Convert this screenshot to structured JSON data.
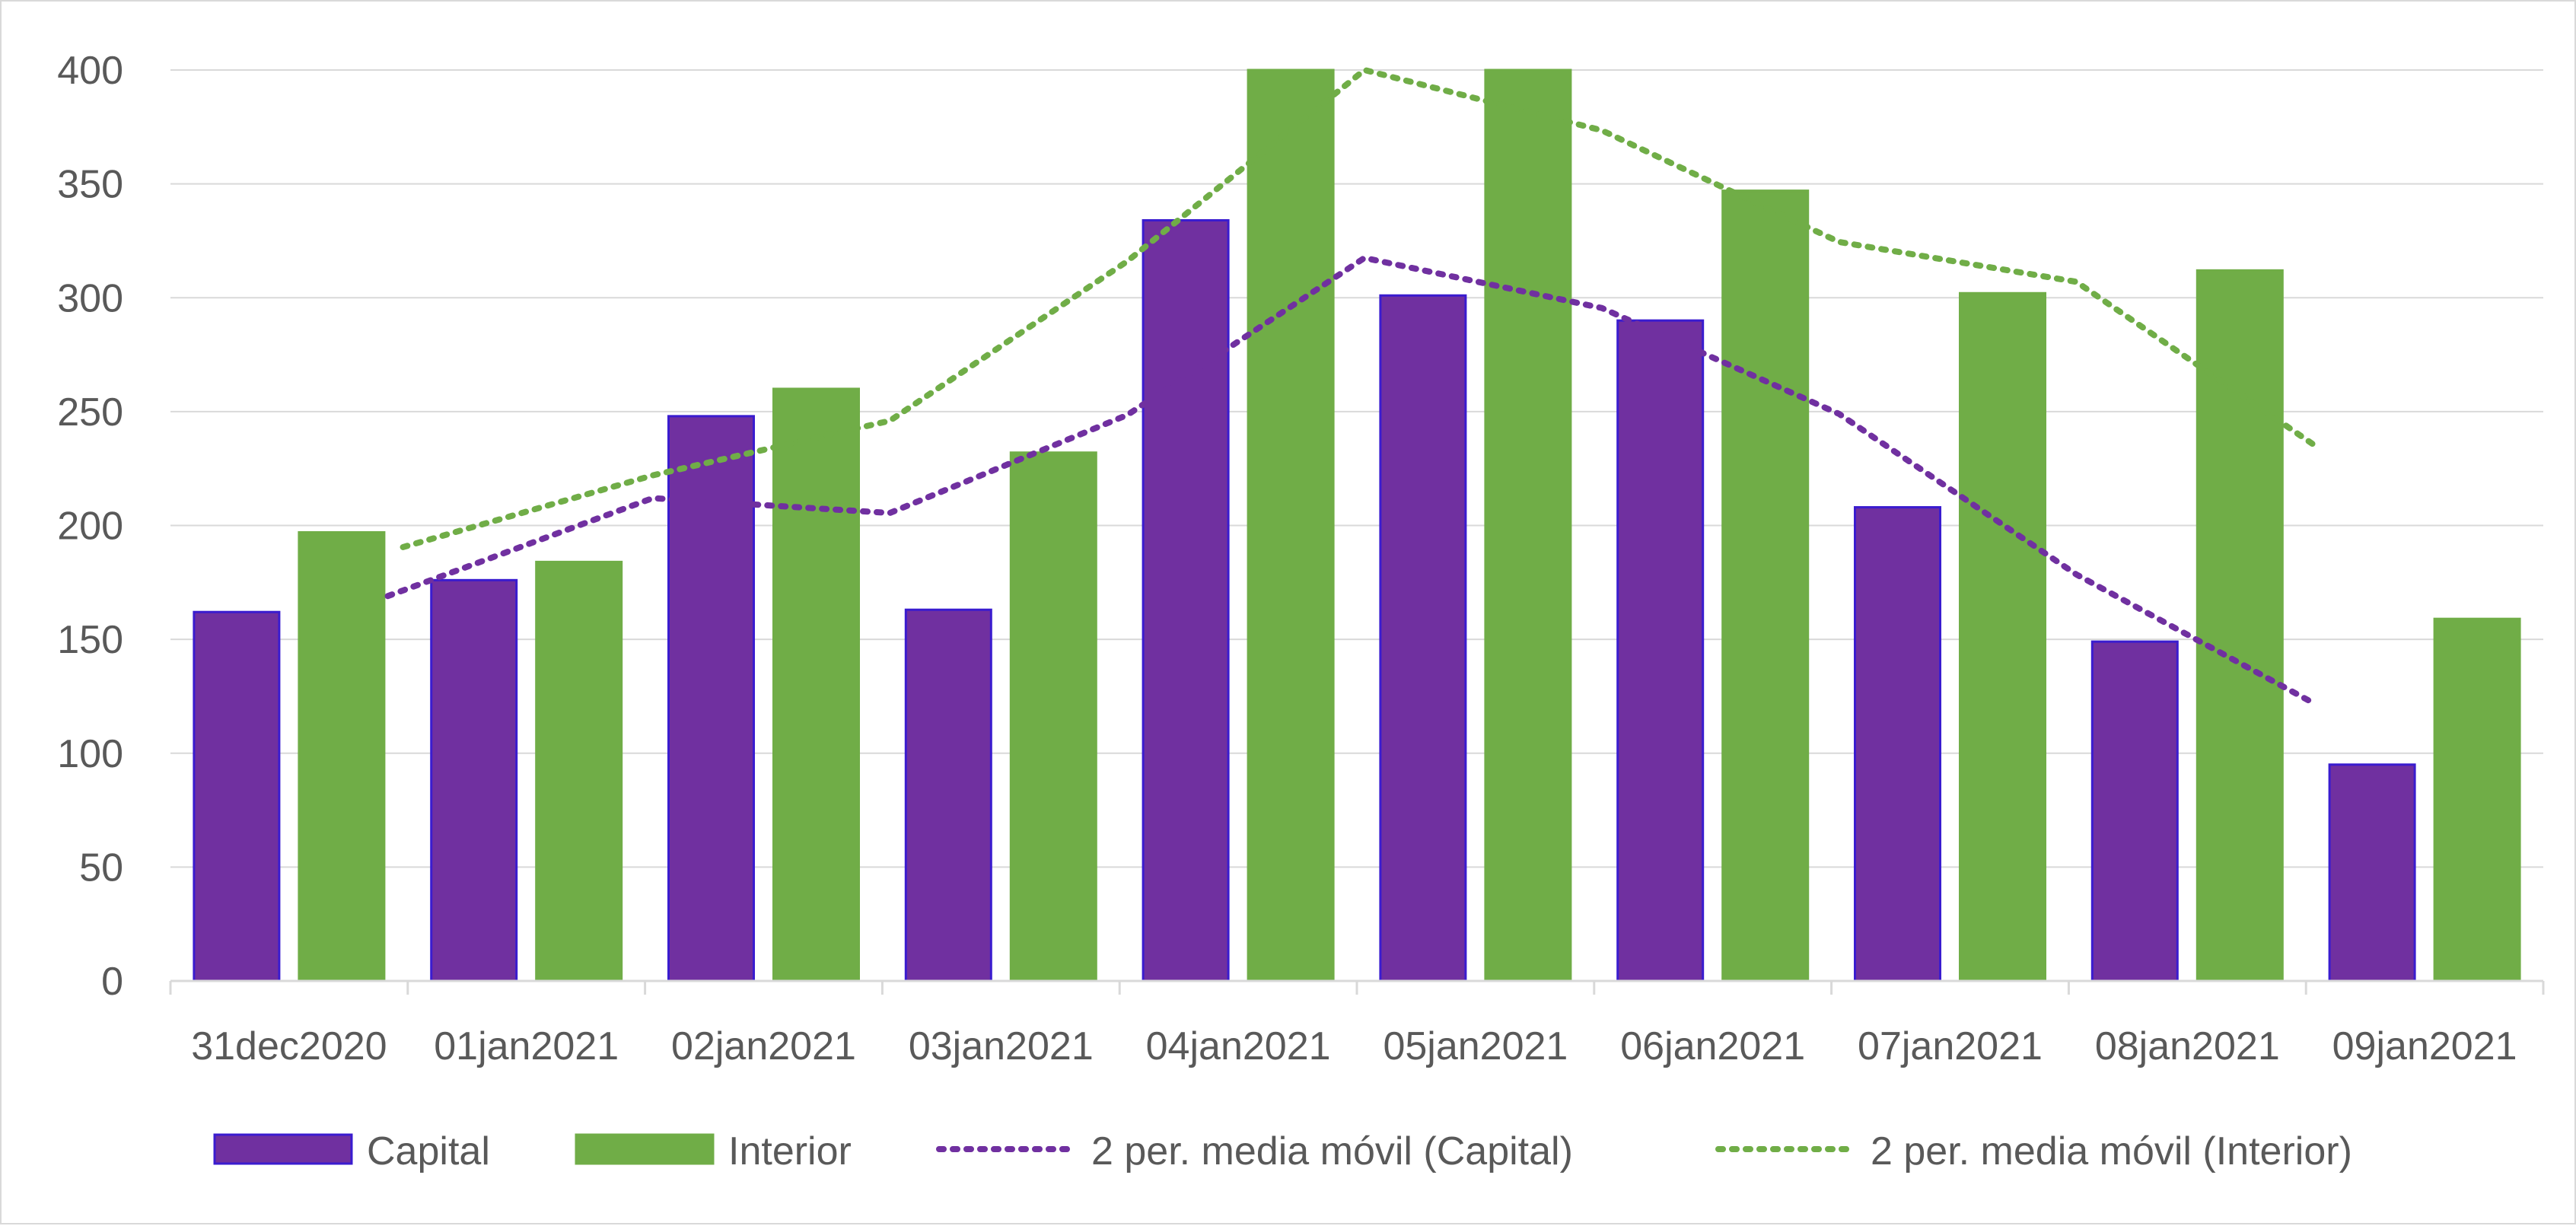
{
  "chart_data": {
    "type": "bar",
    "title": "",
    "xlabel": "",
    "ylabel": "",
    "ylim": [
      0,
      400
    ],
    "yticks": [
      0,
      50,
      100,
      150,
      200,
      250,
      300,
      350,
      400
    ],
    "grid": "horizontal",
    "legend_position": "bottom",
    "categories": [
      "31dec2020",
      "01jan2021",
      "02jan2021",
      "03jan2021",
      "04jan2021",
      "05jan2021",
      "06jan2021",
      "07jan2021",
      "08jan2021",
      "09jan2021"
    ],
    "series": [
      {
        "name": "Capital",
        "kind": "bar",
        "color": "#7030a0",
        "edge": "#3a1ccf",
        "values": [
          162,
          176,
          248,
          163,
          334,
          301,
          290,
          208,
          149,
          95
        ]
      },
      {
        "name": "Interior",
        "kind": "bar",
        "color": "#70ad47",
        "edge": "#70ad47",
        "values": [
          197,
          184,
          260,
          232,
          400,
          400,
          347,
          302,
          312,
          159
        ]
      }
    ],
    "trendlines": [
      {
        "name": "2 per. media móvil (Capital)",
        "kind": "moving-average",
        "period": 2,
        "color": "#7030a0",
        "values": [
          null,
          169,
          212,
          205.5,
          248.5,
          317.5,
          295.5,
          249,
          178.5,
          122
        ]
      },
      {
        "name": "2 per. media móvil (Interior)",
        "kind": "moving-average",
        "period": 2,
        "color": "#70ad47",
        "values": [
          null,
          190.5,
          222,
          246,
          316,
          400,
          373.5,
          324.5,
          307,
          235.5
        ]
      }
    ]
  }
}
